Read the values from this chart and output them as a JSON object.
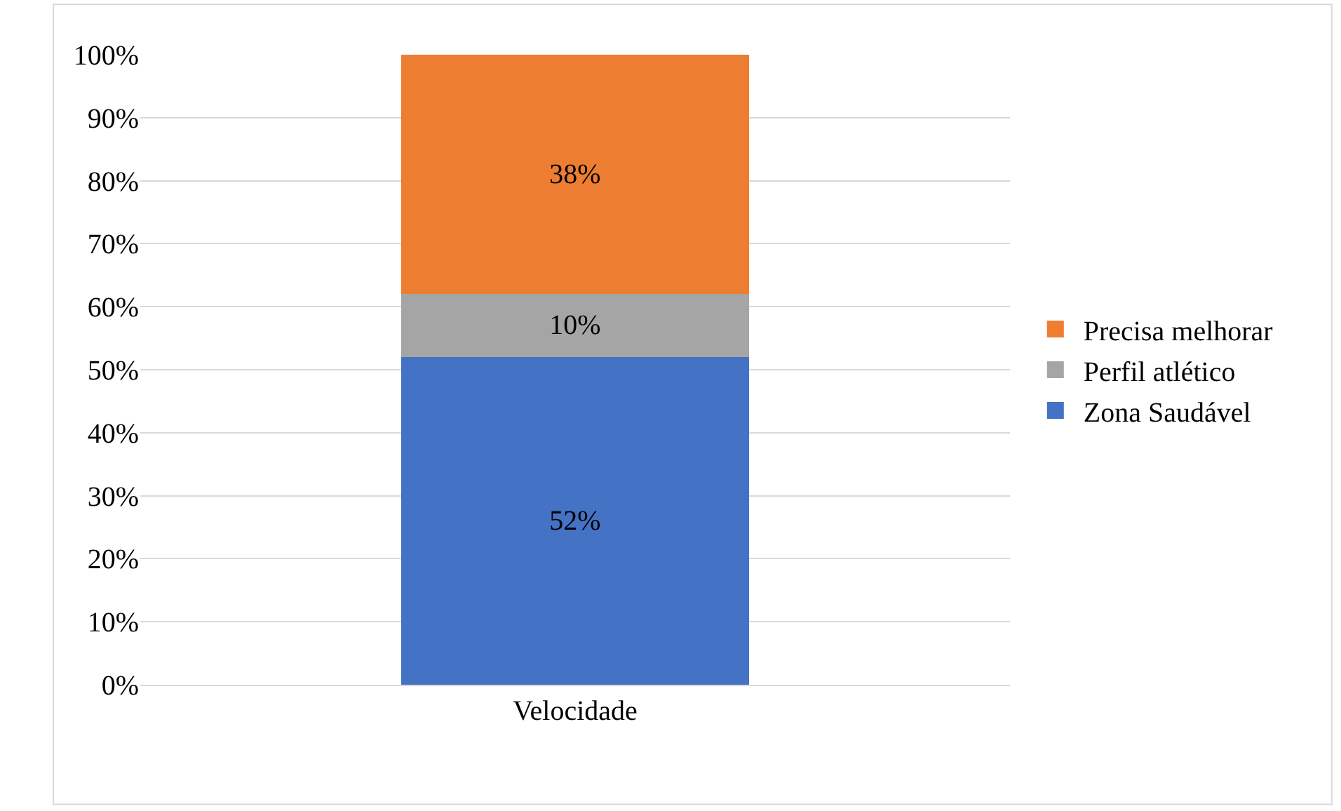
{
  "chart_data": {
    "type": "bar",
    "stacked": true,
    "categories": [
      "Velocidade"
    ],
    "series": [
      {
        "name": "Zona Saudável",
        "color": "#4472c4",
        "values": [
          52
        ],
        "value_labels": [
          "52%"
        ]
      },
      {
        "name": "Perfil atlético",
        "color": "#a5a5a5",
        "values": [
          10
        ],
        "value_labels": [
          "10%"
        ]
      },
      {
        "name": "Precisa melhorar",
        "color": "#ed7d31",
        "values": [
          38
        ],
        "value_labels": [
          "38%"
        ]
      }
    ],
    "ylim": [
      0,
      100
    ],
    "yticks": [
      {
        "value": 0,
        "label": "0%"
      },
      {
        "value": 10,
        "label": "10%"
      },
      {
        "value": 20,
        "label": "20%"
      },
      {
        "value": 30,
        "label": "30%"
      },
      {
        "value": 40,
        "label": "40%"
      },
      {
        "value": 50,
        "label": "50%"
      },
      {
        "value": 60,
        "label": "60%"
      },
      {
        "value": 70,
        "label": "70%"
      },
      {
        "value": 80,
        "label": "80%"
      },
      {
        "value": 90,
        "label": "90%"
      },
      {
        "value": 100,
        "label": "100%"
      }
    ],
    "grid": "y",
    "legend": "right"
  }
}
